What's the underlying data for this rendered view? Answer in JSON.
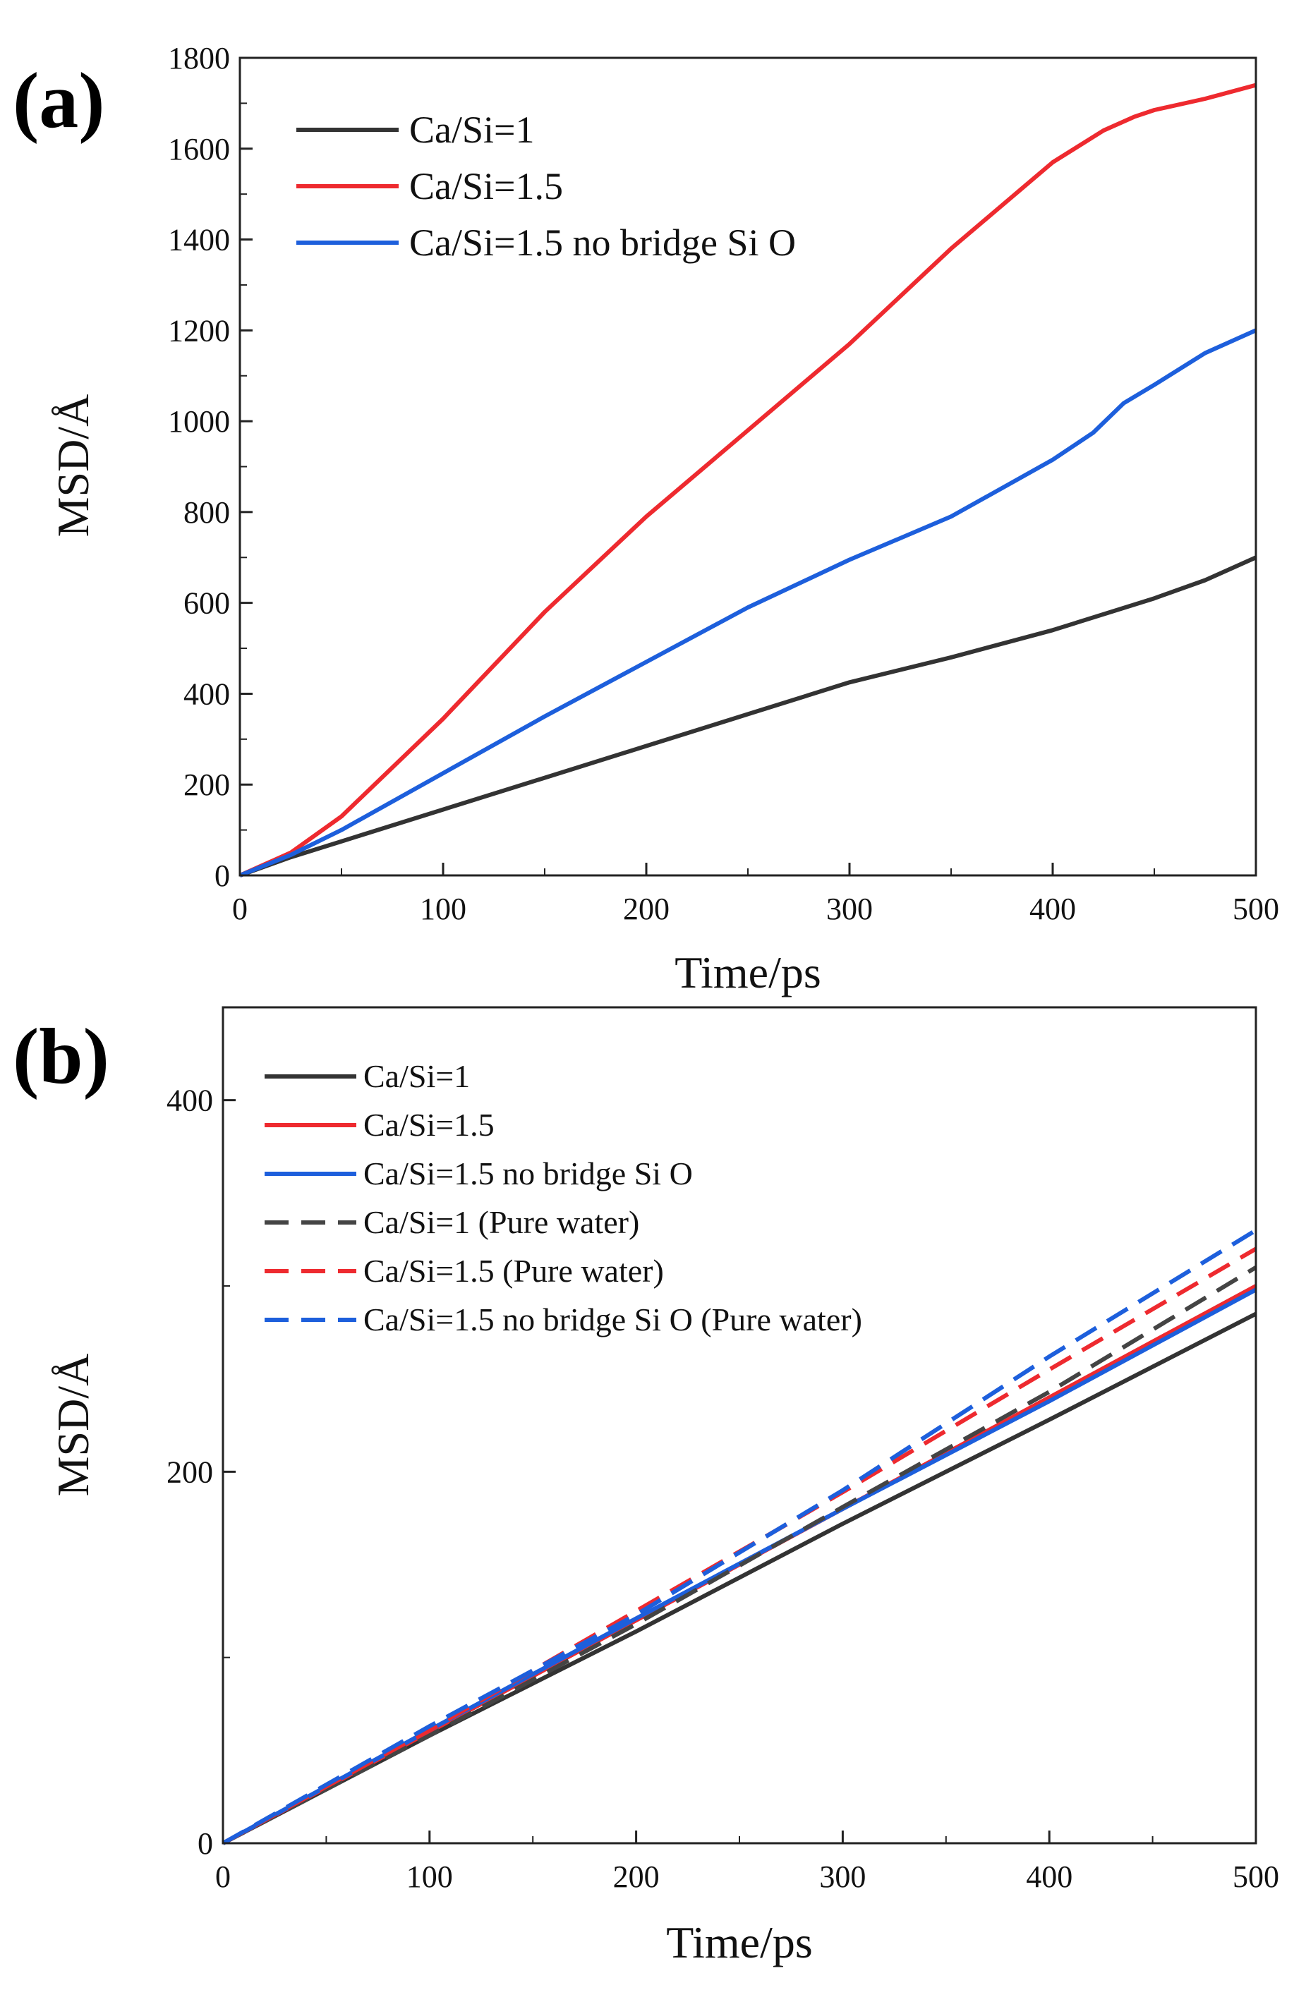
{
  "chart_data": [
    {
      "type": "line",
      "panel_label": "(a)",
      "xlabel": "Time/ps",
      "ylabel": "MSD/Å",
      "xlim": [
        0,
        500
      ],
      "ylim": [
        0,
        1800
      ],
      "x_ticks": [
        0,
        100,
        200,
        300,
        400,
        500
      ],
      "y_ticks": [
        0,
        200,
        400,
        600,
        800,
        1000,
        1200,
        1400,
        1600,
        1800
      ],
      "legend_position": "top-left",
      "series": [
        {
          "name": "Ca/Si=1",
          "color": "#333333",
          "style": "solid",
          "x": [
            0,
            25,
            50,
            100,
            150,
            200,
            250,
            300,
            350,
            400,
            450,
            475,
            500
          ],
          "y": [
            0,
            40,
            75,
            145,
            215,
            285,
            355,
            425,
            480,
            540,
            610,
            650,
            700
          ]
        },
        {
          "name": "Ca/Si=1.5",
          "color": "#ee2a2f",
          "style": "solid",
          "x": [
            0,
            25,
            50,
            100,
            150,
            200,
            250,
            300,
            350,
            400,
            425,
            440,
            450,
            475,
            500
          ],
          "y": [
            0,
            50,
            130,
            345,
            580,
            790,
            980,
            1170,
            1380,
            1570,
            1640,
            1670,
            1685,
            1710,
            1740
          ]
        },
        {
          "name": "Ca/Si=1.5 no bridge Si O",
          "color": "#1d5fdc",
          "style": "solid",
          "x": [
            0,
            25,
            50,
            100,
            150,
            200,
            250,
            300,
            350,
            400,
            420,
            435,
            450,
            475,
            500
          ],
          "y": [
            0,
            45,
            100,
            225,
            350,
            470,
            590,
            695,
            790,
            915,
            975,
            1040,
            1080,
            1150,
            1200
          ]
        }
      ]
    },
    {
      "type": "line",
      "panel_label": "(b)",
      "xlabel": "Time/ps",
      "ylabel": "MSD/Å",
      "xlim": [
        0,
        500
      ],
      "ylim": [
        0,
        450
      ],
      "x_ticks": [
        0,
        100,
        200,
        300,
        400,
        500
      ],
      "y_ticks": [
        0,
        200,
        400
      ],
      "legend_position": "top-left",
      "series": [
        {
          "name": "Ca/Si=1",
          "color": "#333333",
          "style": "solid",
          "x": [
            0,
            100,
            200,
            300,
            400,
            500
          ],
          "y": [
            0,
            58,
            114,
            172,
            228,
            285
          ]
        },
        {
          "name": "Ca/Si=1.5",
          "color": "#ee2a2f",
          "style": "solid",
          "x": [
            0,
            100,
            200,
            300,
            400,
            500
          ],
          "y": [
            0,
            60,
            120,
            180,
            240,
            300
          ]
        },
        {
          "name": "Ca/Si=1.5 no bridge Si O",
          "color": "#1d5fdc",
          "style": "solid",
          "x": [
            0,
            100,
            200,
            300,
            400,
            500
          ],
          "y": [
            0,
            61,
            121,
            180,
            238,
            298
          ]
        },
        {
          "name": "Ca/Si=1 (Pure water)",
          "color": "#444444",
          "style": "dashed",
          "x": [
            0,
            100,
            200,
            300,
            400,
            500
          ],
          "y": [
            0,
            58,
            118,
            181,
            243,
            310
          ]
        },
        {
          "name": "Ca/Si=1.5 (Pure water)",
          "color": "#ee2a2f",
          "style": "dashed",
          "x": [
            0,
            100,
            200,
            300,
            400,
            500
          ],
          "y": [
            0,
            61,
            125,
            189,
            255,
            320
          ]
        },
        {
          "name": "Ca/Si=1.5 no bridge Si O (Pure water)",
          "color": "#1d5fdc",
          "style": "dashed",
          "x": [
            0,
            100,
            200,
            300,
            400,
            500
          ],
          "y": [
            0,
            63,
            123,
            190,
            262,
            330
          ]
        }
      ]
    }
  ]
}
